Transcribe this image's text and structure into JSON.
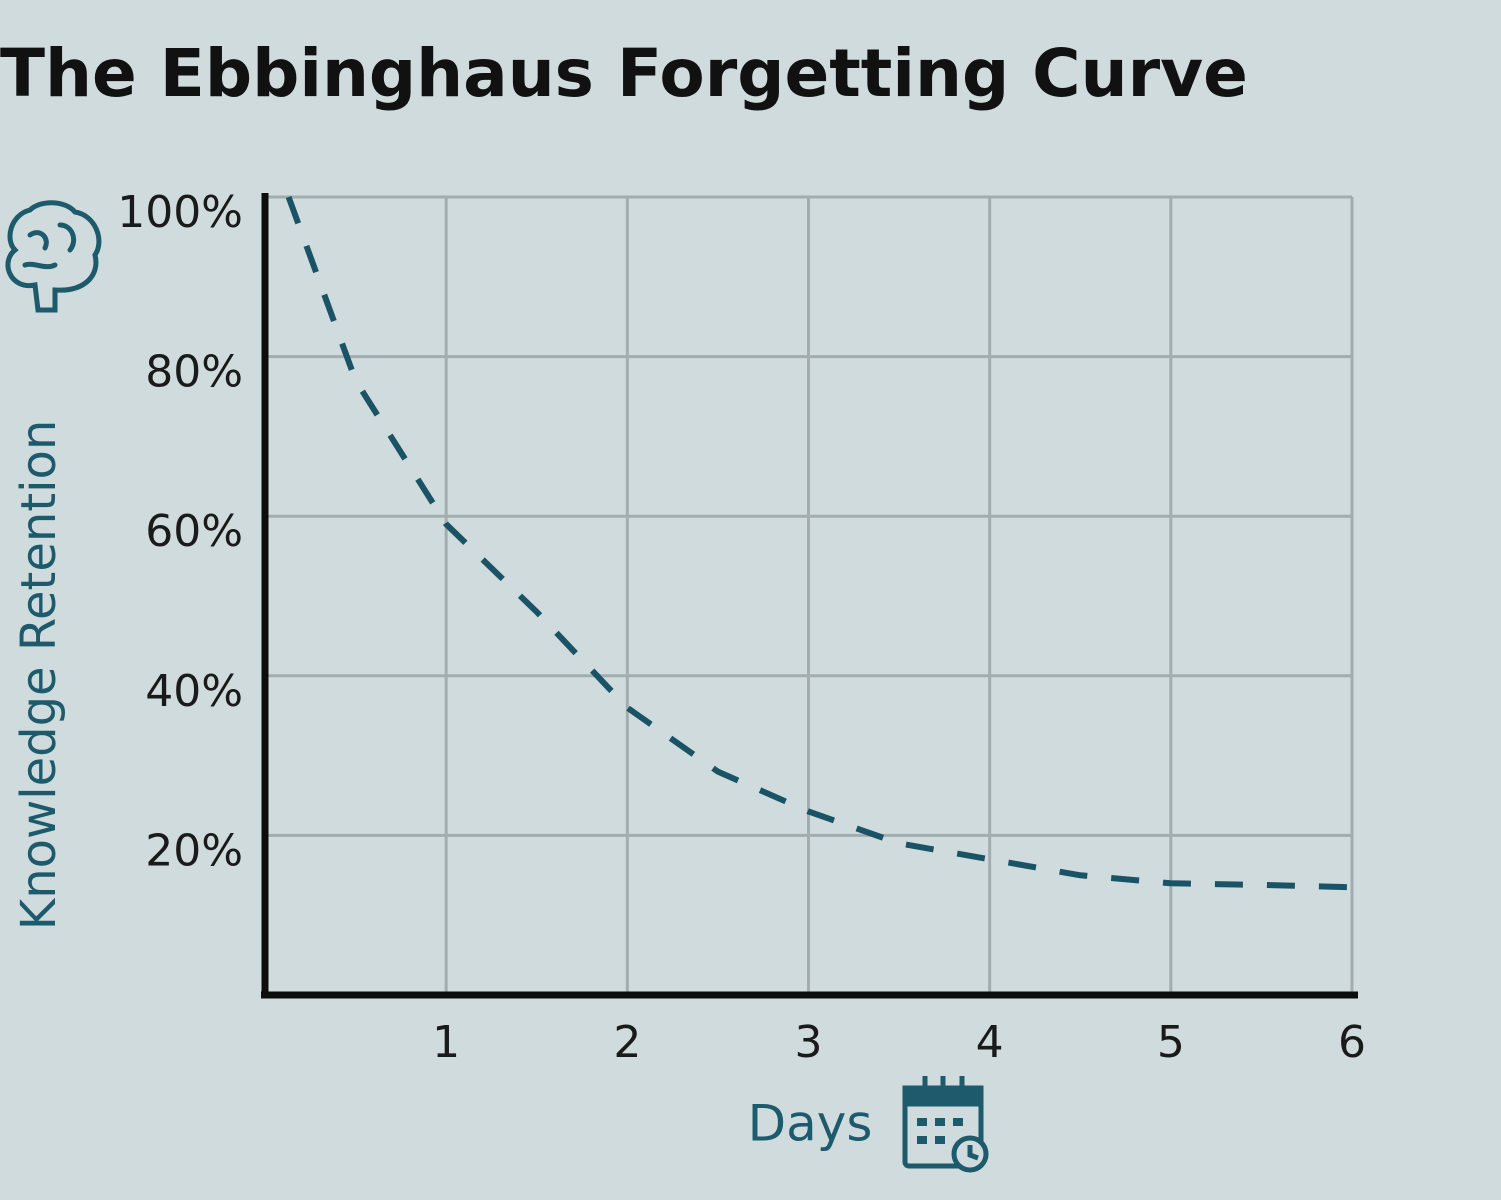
{
  "chart_data": {
    "type": "line",
    "title": "The Ebbinghaus Forgetting Curve",
    "y_label": "Knowledge Retention",
    "x_label": "Days",
    "x": [
      0.13,
      0.5,
      1,
      1.5,
      2,
      2.5,
      3,
      3.5,
      4,
      4.5,
      5,
      5.5,
      6
    ],
    "values": [
      100,
      77,
      59,
      48,
      36,
      28,
      23,
      19,
      17,
      15,
      14,
      13.8,
      13.5
    ],
    "color": "#1b5366",
    "dashed": true,
    "xlim": [
      0,
      6
    ],
    "xticks": [
      1,
      2,
      3,
      4,
      5,
      6
    ],
    "ylim": [
      0,
      100
    ],
    "yticks": [
      {
        "value": 20,
        "label": "20%"
      },
      {
        "value": 40,
        "label": "40%"
      },
      {
        "value": 60,
        "label": "60%"
      },
      {
        "value": 80,
        "label": "80%"
      },
      {
        "value": 100,
        "label": "100%"
      }
    ],
    "grid": true
  }
}
